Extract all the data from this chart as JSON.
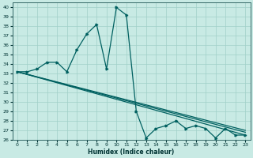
{
  "xlabel": "Humidex (Indice chaleur)",
  "xlim": [
    -0.5,
    23.5
  ],
  "ylim": [
    26,
    40.5
  ],
  "yticks": [
    26,
    27,
    28,
    29,
    30,
    31,
    32,
    33,
    34,
    35,
    36,
    37,
    38,
    39,
    40
  ],
  "xticks": [
    0,
    1,
    2,
    3,
    4,
    5,
    6,
    7,
    8,
    9,
    10,
    11,
    12,
    13,
    14,
    15,
    16,
    17,
    18,
    19,
    20,
    21,
    22,
    23
  ],
  "bg_color": "#c8eae4",
  "grid_color": "#a0d0c8",
  "line_color": "#006060",
  "series": [
    {
      "x": [
        0,
        1,
        2,
        3,
        4,
        5,
        6,
        7,
        8,
        9,
        10,
        11,
        12,
        13,
        14,
        15,
        16,
        17,
        18,
        19,
        20,
        21,
        22,
        23
      ],
      "y": [
        33.2,
        33.2,
        33.5,
        34.2,
        34.2,
        33.2,
        35.5,
        37.2,
        38.2,
        33.5,
        40.0,
        39.2,
        29.0,
        26.2,
        27.2,
        27.5,
        28.0,
        27.2,
        27.5,
        27.2,
        26.2,
        27.2,
        26.5,
        26.5
      ]
    },
    {
      "x": [
        0,
        23
      ],
      "y": [
        33.2,
        27.0
      ]
    },
    {
      "x": [
        0,
        23
      ],
      "y": [
        33.2,
        26.8
      ]
    },
    {
      "x": [
        0,
        23
      ],
      "y": [
        33.2,
        26.5
      ]
    }
  ]
}
